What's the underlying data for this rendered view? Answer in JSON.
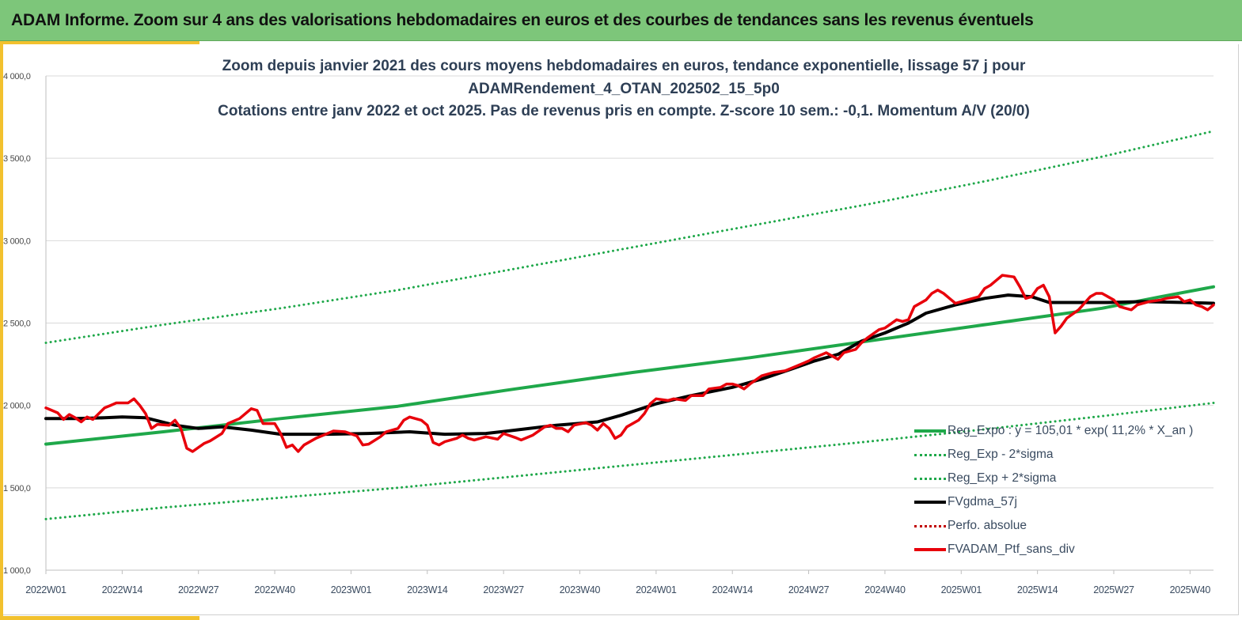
{
  "header": {
    "title": "ADAM Informe. Zoom sur 4 ans des valorisations hebdomadaires en euros et des courbes de tendances sans les revenus éventuels"
  },
  "colors": {
    "banner": "#7dc67a",
    "accent": "#f2c12e",
    "trend": "#1fa84a",
    "smoothed": "#000000",
    "portfolio": "#e8000b",
    "perfo": "#c00000"
  },
  "chart_data": {
    "type": "line",
    "title_lines": [
      "Zoom depuis janvier 2021 des cours moyens hebdomadaires  en euros, tendance exponentielle, lissage 57 j pour",
      "ADAMRendement_4_OTAN_202502_15_5p0",
      "Cotations entre janv 2022 et oct 2025. Pas de revenus pris en compte. Z-score 10 sem.: -0,1. Momentum A/V (20/0)"
    ],
    "x_unit": "week index since 2022W01",
    "x_range": [
      0,
      199
    ],
    "ylim": [
      1000,
      4000
    ],
    "y_ticks": [
      {
        "value": 1000,
        "label": "1 000,0"
      },
      {
        "value": 1500,
        "label": "1 500,0"
      },
      {
        "value": 2000,
        "label": "2 000,0"
      },
      {
        "value": 2500,
        "label": "2 500,0"
      },
      {
        "value": 3000,
        "label": "3 000,0"
      },
      {
        "value": 3500,
        "label": "3 500,0"
      },
      {
        "value": 4000,
        "label": "4 000,0"
      }
    ],
    "x_ticks": [
      {
        "x": 0,
        "label": "2022W01"
      },
      {
        "x": 13,
        "label": "2022W14"
      },
      {
        "x": 26,
        "label": "2022W27"
      },
      {
        "x": 39,
        "label": "2022W40"
      },
      {
        "x": 52,
        "label": "2023W01"
      },
      {
        "x": 65,
        "label": "2023W14"
      },
      {
        "x": 78,
        "label": "2023W27"
      },
      {
        "x": 91,
        "label": "2023W40"
      },
      {
        "x": 104,
        "label": "2024W01"
      },
      {
        "x": 117,
        "label": "2024W14"
      },
      {
        "x": 130,
        "label": "2024W27"
      },
      {
        "x": 143,
        "label": "2024W40"
      },
      {
        "x": 156,
        "label": "2025W01"
      },
      {
        "x": 169,
        "label": "2025W14"
      },
      {
        "x": 182,
        "label": "2025W27"
      },
      {
        "x": 195,
        "label": "2025W40"
      }
    ],
    "grid": true,
    "series": [
      {
        "name": "Reg_Expo",
        "legend": "Reg_Expo : y = 105,01 * exp( 11,2% *  X_an )",
        "style": "solid",
        "color": "#1fa84a",
        "points": [
          [
            0,
            1765
          ],
          [
            20,
            1840
          ],
          [
            40,
            1920
          ],
          [
            60,
            1995
          ],
          [
            80,
            2100
          ],
          [
            100,
            2200
          ],
          [
            120,
            2290
          ],
          [
            140,
            2390
          ],
          [
            160,
            2490
          ],
          [
            180,
            2590
          ],
          [
            190,
            2660
          ],
          [
            199,
            2720
          ]
        ]
      },
      {
        "name": "Reg_Exp - 2*sigma",
        "legend": "Reg_Exp - 2*sigma",
        "style": "dotted",
        "color": "#1fa84a",
        "points": [
          [
            0,
            1310
          ],
          [
            20,
            1380
          ],
          [
            40,
            1440
          ],
          [
            60,
            1500
          ],
          [
            80,
            1570
          ],
          [
            100,
            1640
          ],
          [
            120,
            1710
          ],
          [
            140,
            1780
          ],
          [
            160,
            1855
          ],
          [
            180,
            1935
          ],
          [
            199,
            2015
          ]
        ]
      },
      {
        "name": "Reg_Exp + 2*sigma",
        "legend": "Reg_Exp + 2*sigma",
        "style": "dotted",
        "color": "#1fa84a",
        "points": [
          [
            0,
            2380
          ],
          [
            20,
            2490
          ],
          [
            40,
            2590
          ],
          [
            60,
            2700
          ],
          [
            80,
            2830
          ],
          [
            100,
            2960
          ],
          [
            120,
            3090
          ],
          [
            140,
            3220
          ],
          [
            160,
            3360
          ],
          [
            180,
            3510
          ],
          [
            199,
            3665
          ]
        ]
      },
      {
        "name": "FVgdma_57j",
        "legend": "FVgdma_57j",
        "style": "solid",
        "color": "#000000",
        "points": [
          [
            0,
            1920
          ],
          [
            5,
            1920
          ],
          [
            10,
            1925
          ],
          [
            13,
            1930
          ],
          [
            17,
            1925
          ],
          [
            22,
            1880
          ],
          [
            26,
            1860
          ],
          [
            30,
            1870
          ],
          [
            35,
            1850
          ],
          [
            40,
            1825
          ],
          [
            48,
            1825
          ],
          [
            55,
            1830
          ],
          [
            62,
            1840
          ],
          [
            68,
            1825
          ],
          [
            75,
            1830
          ],
          [
            80,
            1850
          ],
          [
            87,
            1880
          ],
          [
            94,
            1900
          ],
          [
            98,
            1940
          ],
          [
            104,
            2010
          ],
          [
            110,
            2060
          ],
          [
            117,
            2110
          ],
          [
            122,
            2160
          ],
          [
            127,
            2220
          ],
          [
            131,
            2270
          ],
          [
            135,
            2310
          ],
          [
            139,
            2390
          ],
          [
            143,
            2440
          ],
          [
            147,
            2500
          ],
          [
            150,
            2560
          ],
          [
            155,
            2610
          ],
          [
            160,
            2650
          ],
          [
            164,
            2670
          ],
          [
            168,
            2660
          ],
          [
            171,
            2625
          ],
          [
            176,
            2625
          ],
          [
            181,
            2625
          ],
          [
            187,
            2630
          ],
          [
            194,
            2625
          ],
          [
            199,
            2620
          ]
        ]
      },
      {
        "name": "Perfo. absolue",
        "legend": "Perfo. absolue",
        "style": "dotted",
        "color": "#c00000",
        "points": []
      },
      {
        "name": "FVADAM_Ptf_sans_div",
        "legend": "FVADAM_Ptf_sans_div",
        "style": "solid",
        "color": "#e8000b",
        "points": [
          [
            0,
            1985
          ],
          [
            2,
            1955
          ],
          [
            3,
            1915
          ],
          [
            4,
            1945
          ],
          [
            5,
            1925
          ],
          [
            6,
            1900
          ],
          [
            7,
            1930
          ],
          [
            8,
            1915
          ],
          [
            10,
            1985
          ],
          [
            11,
            2000
          ],
          [
            12,
            2015
          ],
          [
            14,
            2015
          ],
          [
            15,
            2040
          ],
          [
            16,
            2000
          ],
          [
            17,
            1950
          ],
          [
            18,
            1860
          ],
          [
            19,
            1885
          ],
          [
            21,
            1880
          ],
          [
            22,
            1910
          ],
          [
            23,
            1860
          ],
          [
            24,
            1740
          ],
          [
            25,
            1720
          ],
          [
            27,
            1770
          ],
          [
            28,
            1785
          ],
          [
            30,
            1830
          ],
          [
            31,
            1890
          ],
          [
            33,
            1920
          ],
          [
            35,
            1980
          ],
          [
            36,
            1970
          ],
          [
            37,
            1890
          ],
          [
            39,
            1890
          ],
          [
            40,
            1830
          ],
          [
            41,
            1745
          ],
          [
            42,
            1760
          ],
          [
            43,
            1720
          ],
          [
            44,
            1760
          ],
          [
            46,
            1800
          ],
          [
            48,
            1830
          ],
          [
            49,
            1845
          ],
          [
            51,
            1840
          ],
          [
            53,
            1815
          ],
          [
            54,
            1760
          ],
          [
            55,
            1765
          ],
          [
            57,
            1810
          ],
          [
            58,
            1840
          ],
          [
            60,
            1860
          ],
          [
            61,
            1910
          ],
          [
            62,
            1930
          ],
          [
            64,
            1910
          ],
          [
            65,
            1880
          ],
          [
            66,
            1775
          ],
          [
            67,
            1760
          ],
          [
            68,
            1780
          ],
          [
            70,
            1800
          ],
          [
            71,
            1820
          ],
          [
            72,
            1800
          ],
          [
            73,
            1790
          ],
          [
            75,
            1810
          ],
          [
            77,
            1795
          ],
          [
            78,
            1830
          ],
          [
            80,
            1805
          ],
          [
            81,
            1790
          ],
          [
            83,
            1820
          ],
          [
            85,
            1870
          ],
          [
            86,
            1880
          ],
          [
            87,
            1860
          ],
          [
            88,
            1860
          ],
          [
            89,
            1840
          ],
          [
            90,
            1880
          ],
          [
            92,
            1895
          ],
          [
            93,
            1880
          ],
          [
            94,
            1850
          ],
          [
            95,
            1890
          ],
          [
            96,
            1860
          ],
          [
            97,
            1800
          ],
          [
            98,
            1820
          ],
          [
            99,
            1870
          ],
          [
            101,
            1910
          ],
          [
            102,
            1950
          ],
          [
            103,
            2010
          ],
          [
            104,
            2040
          ],
          [
            106,
            2030
          ],
          [
            107,
            2040
          ],
          [
            109,
            2030
          ],
          [
            110,
            2060
          ],
          [
            112,
            2060
          ],
          [
            113,
            2100
          ],
          [
            115,
            2110
          ],
          [
            116,
            2130
          ],
          [
            117,
            2130
          ],
          [
            118,
            2120
          ],
          [
            119,
            2100
          ],
          [
            120,
            2130
          ],
          [
            122,
            2180
          ],
          [
            124,
            2200
          ],
          [
            126,
            2210
          ],
          [
            128,
            2240
          ],
          [
            130,
            2270
          ],
          [
            131,
            2290
          ],
          [
            133,
            2320
          ],
          [
            134,
            2300
          ],
          [
            135,
            2280
          ],
          [
            136,
            2320
          ],
          [
            138,
            2340
          ],
          [
            139,
            2380
          ],
          [
            140,
            2410
          ],
          [
            142,
            2460
          ],
          [
            143,
            2470
          ],
          [
            145,
            2520
          ],
          [
            146,
            2510
          ],
          [
            147,
            2520
          ],
          [
            148,
            2600
          ],
          [
            150,
            2640
          ],
          [
            151,
            2680
          ],
          [
            152,
            2700
          ],
          [
            153,
            2680
          ],
          [
            154,
            2650
          ],
          [
            155,
            2620
          ],
          [
            157,
            2640
          ],
          [
            159,
            2660
          ],
          [
            160,
            2710
          ],
          [
            161,
            2730
          ],
          [
            162,
            2760
          ],
          [
            163,
            2790
          ],
          [
            165,
            2780
          ],
          [
            166,
            2720
          ],
          [
            167,
            2650
          ],
          [
            168,
            2660
          ],
          [
            169,
            2710
          ],
          [
            170,
            2730
          ],
          [
            171,
            2660
          ],
          [
            172,
            2440
          ],
          [
            173,
            2480
          ],
          [
            174,
            2530
          ],
          [
            176,
            2580
          ],
          [
            177,
            2620
          ],
          [
            178,
            2660
          ],
          [
            179,
            2680
          ],
          [
            180,
            2680
          ],
          [
            182,
            2640
          ],
          [
            183,
            2600
          ],
          [
            184,
            2590
          ],
          [
            185,
            2580
          ],
          [
            186,
            2610
          ],
          [
            188,
            2630
          ],
          [
            190,
            2640
          ],
          [
            191,
            2650
          ],
          [
            193,
            2660
          ],
          [
            194,
            2630
          ],
          [
            195,
            2640
          ],
          [
            196,
            2610
          ],
          [
            197,
            2600
          ],
          [
            198,
            2580
          ],
          [
            199,
            2610
          ]
        ]
      }
    ]
  }
}
